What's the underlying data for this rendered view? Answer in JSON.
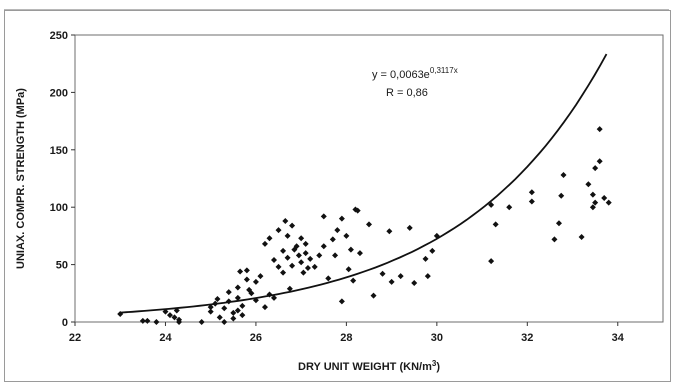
{
  "chart_data": {
    "type": "scatter",
    "xlabel": "DRY UNIT WEIGHT (KN/m³)",
    "ylabel": "UNIAX. COMPR. STRENGTH (MPa)",
    "xlim": [
      22,
      35
    ],
    "ylim": [
      0,
      250
    ],
    "x_ticks": [
      "22",
      "24",
      "26",
      "28",
      "30",
      "32",
      "34"
    ],
    "y_ticks": [
      "0",
      "50",
      "100",
      "150",
      "200",
      "250"
    ],
    "annotation": {
      "equation_prefix": "y = 0,0063e",
      "equation_exponent": "0,3117x",
      "r_value": "R = 0,86"
    },
    "trendline": {
      "a": 0.0063,
      "b": 0.3117,
      "x_range": [
        23.0,
        33.75
      ]
    },
    "points": [
      [
        23.0,
        7
      ],
      [
        23.5,
        1
      ],
      [
        23.6,
        1
      ],
      [
        23.8,
        0
      ],
      [
        24.0,
        9
      ],
      [
        24.1,
        6
      ],
      [
        24.2,
        4
      ],
      [
        24.25,
        10
      ],
      [
        24.3,
        2
      ],
      [
        24.3,
        0
      ],
      [
        24.8,
        0
      ],
      [
        25.0,
        13
      ],
      [
        25.0,
        9
      ],
      [
        25.1,
        16
      ],
      [
        25.15,
        20
      ],
      [
        25.2,
        4
      ],
      [
        25.3,
        12
      ],
      [
        25.3,
        0
      ],
      [
        25.4,
        26
      ],
      [
        25.4,
        18
      ],
      [
        25.5,
        8
      ],
      [
        25.5,
        3
      ],
      [
        25.6,
        30
      ],
      [
        25.6,
        21
      ],
      [
        25.6,
        10
      ],
      [
        25.65,
        44
      ],
      [
        25.7,
        14
      ],
      [
        25.7,
        6
      ],
      [
        25.8,
        45
      ],
      [
        25.8,
        37
      ],
      [
        25.85,
        28
      ],
      [
        25.9,
        25
      ],
      [
        26.0,
        19
      ],
      [
        26.0,
        35
      ],
      [
        26.1,
        40
      ],
      [
        26.2,
        13
      ],
      [
        26.2,
        68
      ],
      [
        26.3,
        24
      ],
      [
        26.3,
        73
      ],
      [
        26.4,
        21
      ],
      [
        26.4,
        54
      ],
      [
        26.5,
        48
      ],
      [
        26.5,
        80
      ],
      [
        26.6,
        43
      ],
      [
        26.6,
        62
      ],
      [
        26.65,
        88
      ],
      [
        26.7,
        75
      ],
      [
        26.7,
        56
      ],
      [
        26.75,
        29
      ],
      [
        26.8,
        49
      ],
      [
        26.8,
        84
      ],
      [
        26.85,
        63
      ],
      [
        26.9,
        66
      ],
      [
        26.95,
        58
      ],
      [
        27.0,
        73
      ],
      [
        27.0,
        52
      ],
      [
        27.05,
        43
      ],
      [
        27.1,
        68
      ],
      [
        27.1,
        60
      ],
      [
        27.15,
        47
      ],
      [
        27.2,
        55
      ],
      [
        27.3,
        48
      ],
      [
        27.4,
        58
      ],
      [
        27.5,
        92
      ],
      [
        27.5,
        66
      ],
      [
        27.6,
        38
      ],
      [
        27.7,
        72
      ],
      [
        27.75,
        58
      ],
      [
        27.8,
        80
      ],
      [
        27.9,
        90
      ],
      [
        27.9,
        18
      ],
      [
        28.0,
        75
      ],
      [
        28.05,
        46
      ],
      [
        28.1,
        63
      ],
      [
        28.15,
        36
      ],
      [
        28.2,
        98
      ],
      [
        28.25,
        97
      ],
      [
        28.3,
        60
      ],
      [
        28.5,
        85
      ],
      [
        28.6,
        23
      ],
      [
        28.8,
        42
      ],
      [
        28.95,
        79
      ],
      [
        29.0,
        35
      ],
      [
        29.2,
        40
      ],
      [
        29.4,
        82
      ],
      [
        29.5,
        34
      ],
      [
        29.75,
        55
      ],
      [
        29.8,
        40
      ],
      [
        29.9,
        62
      ],
      [
        30.0,
        75
      ],
      [
        31.2,
        102
      ],
      [
        31.2,
        53
      ],
      [
        31.3,
        85
      ],
      [
        31.6,
        100
      ],
      [
        32.1,
        105
      ],
      [
        32.1,
        113
      ],
      [
        32.6,
        72
      ],
      [
        32.7,
        86
      ],
      [
        32.75,
        110
      ],
      [
        32.8,
        128
      ],
      [
        33.2,
        74
      ],
      [
        33.35,
        120
      ],
      [
        33.45,
        100
      ],
      [
        33.45,
        111
      ],
      [
        33.5,
        134
      ],
      [
        33.5,
        104
      ],
      [
        33.6,
        168
      ],
      [
        33.6,
        140
      ],
      [
        33.7,
        108
      ],
      [
        33.8,
        104
      ]
    ]
  }
}
